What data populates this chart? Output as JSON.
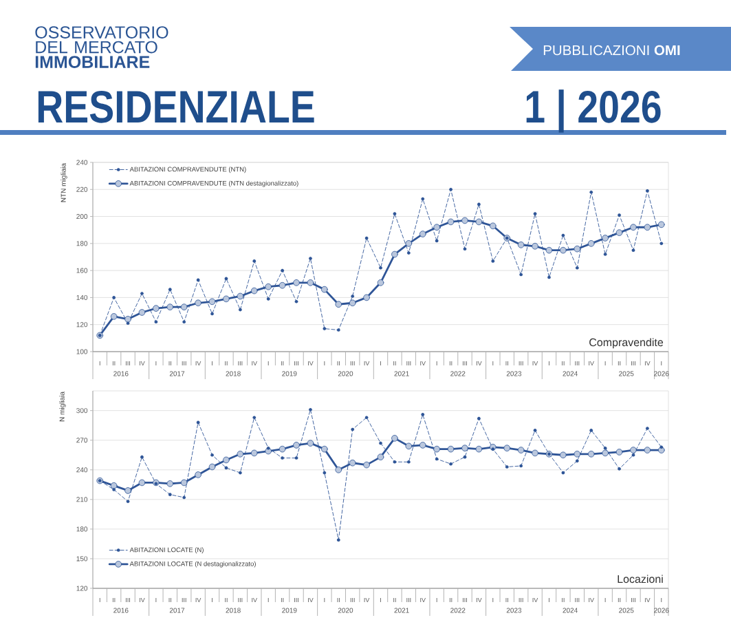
{
  "chart_data": [
    {
      "type": "other",
      "title": "RESIDENZIALE",
      "annotations": [
        "OSSERVATORIO DEL MERCATO **IMMOBILIARE**",
        "PUBBLICAZIONI **OMI**",
        "1 | 2026"
      ]
    },
    {
      "type": "line",
      "title": "Compravendite",
      "ylabel": "NTN migliaia",
      "categories": [
        "I",
        "II",
        "III",
        "IV",
        "I",
        "II",
        "III",
        "IV",
        "I",
        "II",
        "III",
        "IV",
        "I",
        "II",
        "III",
        "IV",
        "I",
        "II",
        "III",
        "IV",
        "I",
        "II",
        "III",
        "IV",
        "I",
        "II",
        "III",
        "IV",
        "I",
        "II",
        "III",
        "IV",
        "I",
        "II",
        "III",
        "IV",
        "I",
        "II",
        "III",
        "IV",
        "I"
      ],
      "annotations": [
        "2016",
        "2017",
        "2018",
        "2019",
        "2020",
        "2021",
        "2022",
        "2023",
        "2024",
        "2025",
        "2026"
      ],
      "ylim": [
        100,
        240
      ],
      "yticks": [
        100,
        120,
        140,
        160,
        180,
        200,
        220,
        240
      ],
      "grid": "y",
      "legend": "top left",
      "series": [
        {
          "name": "ABITAZIONI COMPRAVENDUTE (NTN)",
          "color": "#2f5597",
          "line_style": "dashed",
          "marker": "circle",
          "values": [
            112,
            140,
            121,
            143,
            122,
            146,
            122,
            153,
            128,
            154,
            131,
            167,
            139,
            160,
            137,
            169,
            117,
            116,
            141,
            184,
            162,
            202,
            173,
            213,
            182,
            220,
            176,
            209,
            167,
            184,
            157,
            202,
            155,
            186,
            162,
            218,
            172,
            201,
            175,
            219,
            180
          ]
        },
        {
          "name": "ABITAZIONI COMPRAVENDUTE (NTN destagionalizzato)",
          "color": "#2f5597",
          "line_style": "solid",
          "marker": "circle",
          "values": [
            112,
            126,
            124,
            129,
            132,
            133,
            133,
            136,
            137,
            139,
            141,
            145,
            148,
            149,
            151,
            151,
            146,
            135,
            136,
            140,
            151,
            172,
            180,
            187,
            192,
            196,
            197,
            196,
            193,
            184,
            179,
            178,
            175,
            175,
            176,
            180,
            184,
            188,
            192,
            192,
            194
          ]
        }
      ]
    },
    {
      "type": "line",
      "title": "Locazioni",
      "ylabel": "N migliaia",
      "categories": [
        "I",
        "II",
        "III",
        "IV",
        "I",
        "II",
        "III",
        "IV",
        "I",
        "II",
        "III",
        "IV",
        "I",
        "II",
        "III",
        "IV",
        "I",
        "II",
        "III",
        "IV",
        "I",
        "II",
        "III",
        "IV",
        "I",
        "II",
        "III",
        "IV",
        "I",
        "II",
        "III",
        "IV",
        "I",
        "II",
        "III",
        "IV",
        "I",
        "II",
        "III",
        "IV",
        "I"
      ],
      "annotations": [
        "2016",
        "2017",
        "2018",
        "2019",
        "2020",
        "2021",
        "2022",
        "2023",
        "2024",
        "2025",
        "2026"
      ],
      "ylim": [
        120,
        320
      ],
      "yticks": [
        120,
        150,
        180,
        210,
        240,
        270,
        300
      ],
      "grid": "y",
      "legend": "bottom left",
      "series": [
        {
          "name": "ABITAZIONI LOCATE (N)",
          "color": "#2f5597",
          "line_style": "dashed",
          "marker": "circle",
          "values": [
            229,
            220,
            208,
            253,
            226,
            215,
            212,
            288,
            255,
            242,
            237,
            293,
            262,
            252,
            252,
            301,
            237,
            169,
            281,
            293,
            267,
            248,
            248,
            296,
            251,
            246,
            253,
            292,
            261,
            243,
            244,
            280,
            256,
            237,
            249,
            280,
            262,
            241,
            255,
            282,
            263
          ]
        },
        {
          "name": "ABITAZIONI LOCATE (N destagionalizzato)",
          "color": "#2f5597",
          "line_style": "solid",
          "marker": "circle",
          "values": [
            229,
            224,
            219,
            227,
            227,
            226,
            227,
            235,
            243,
            250,
            256,
            257,
            259,
            261,
            265,
            267,
            261,
            240,
            247,
            245,
            253,
            272,
            264,
            265,
            261,
            261,
            262,
            261,
            263,
            262,
            260,
            257,
            256,
            255,
            256,
            256,
            257,
            258,
            260,
            260,
            260
          ]
        }
      ]
    }
  ]
}
